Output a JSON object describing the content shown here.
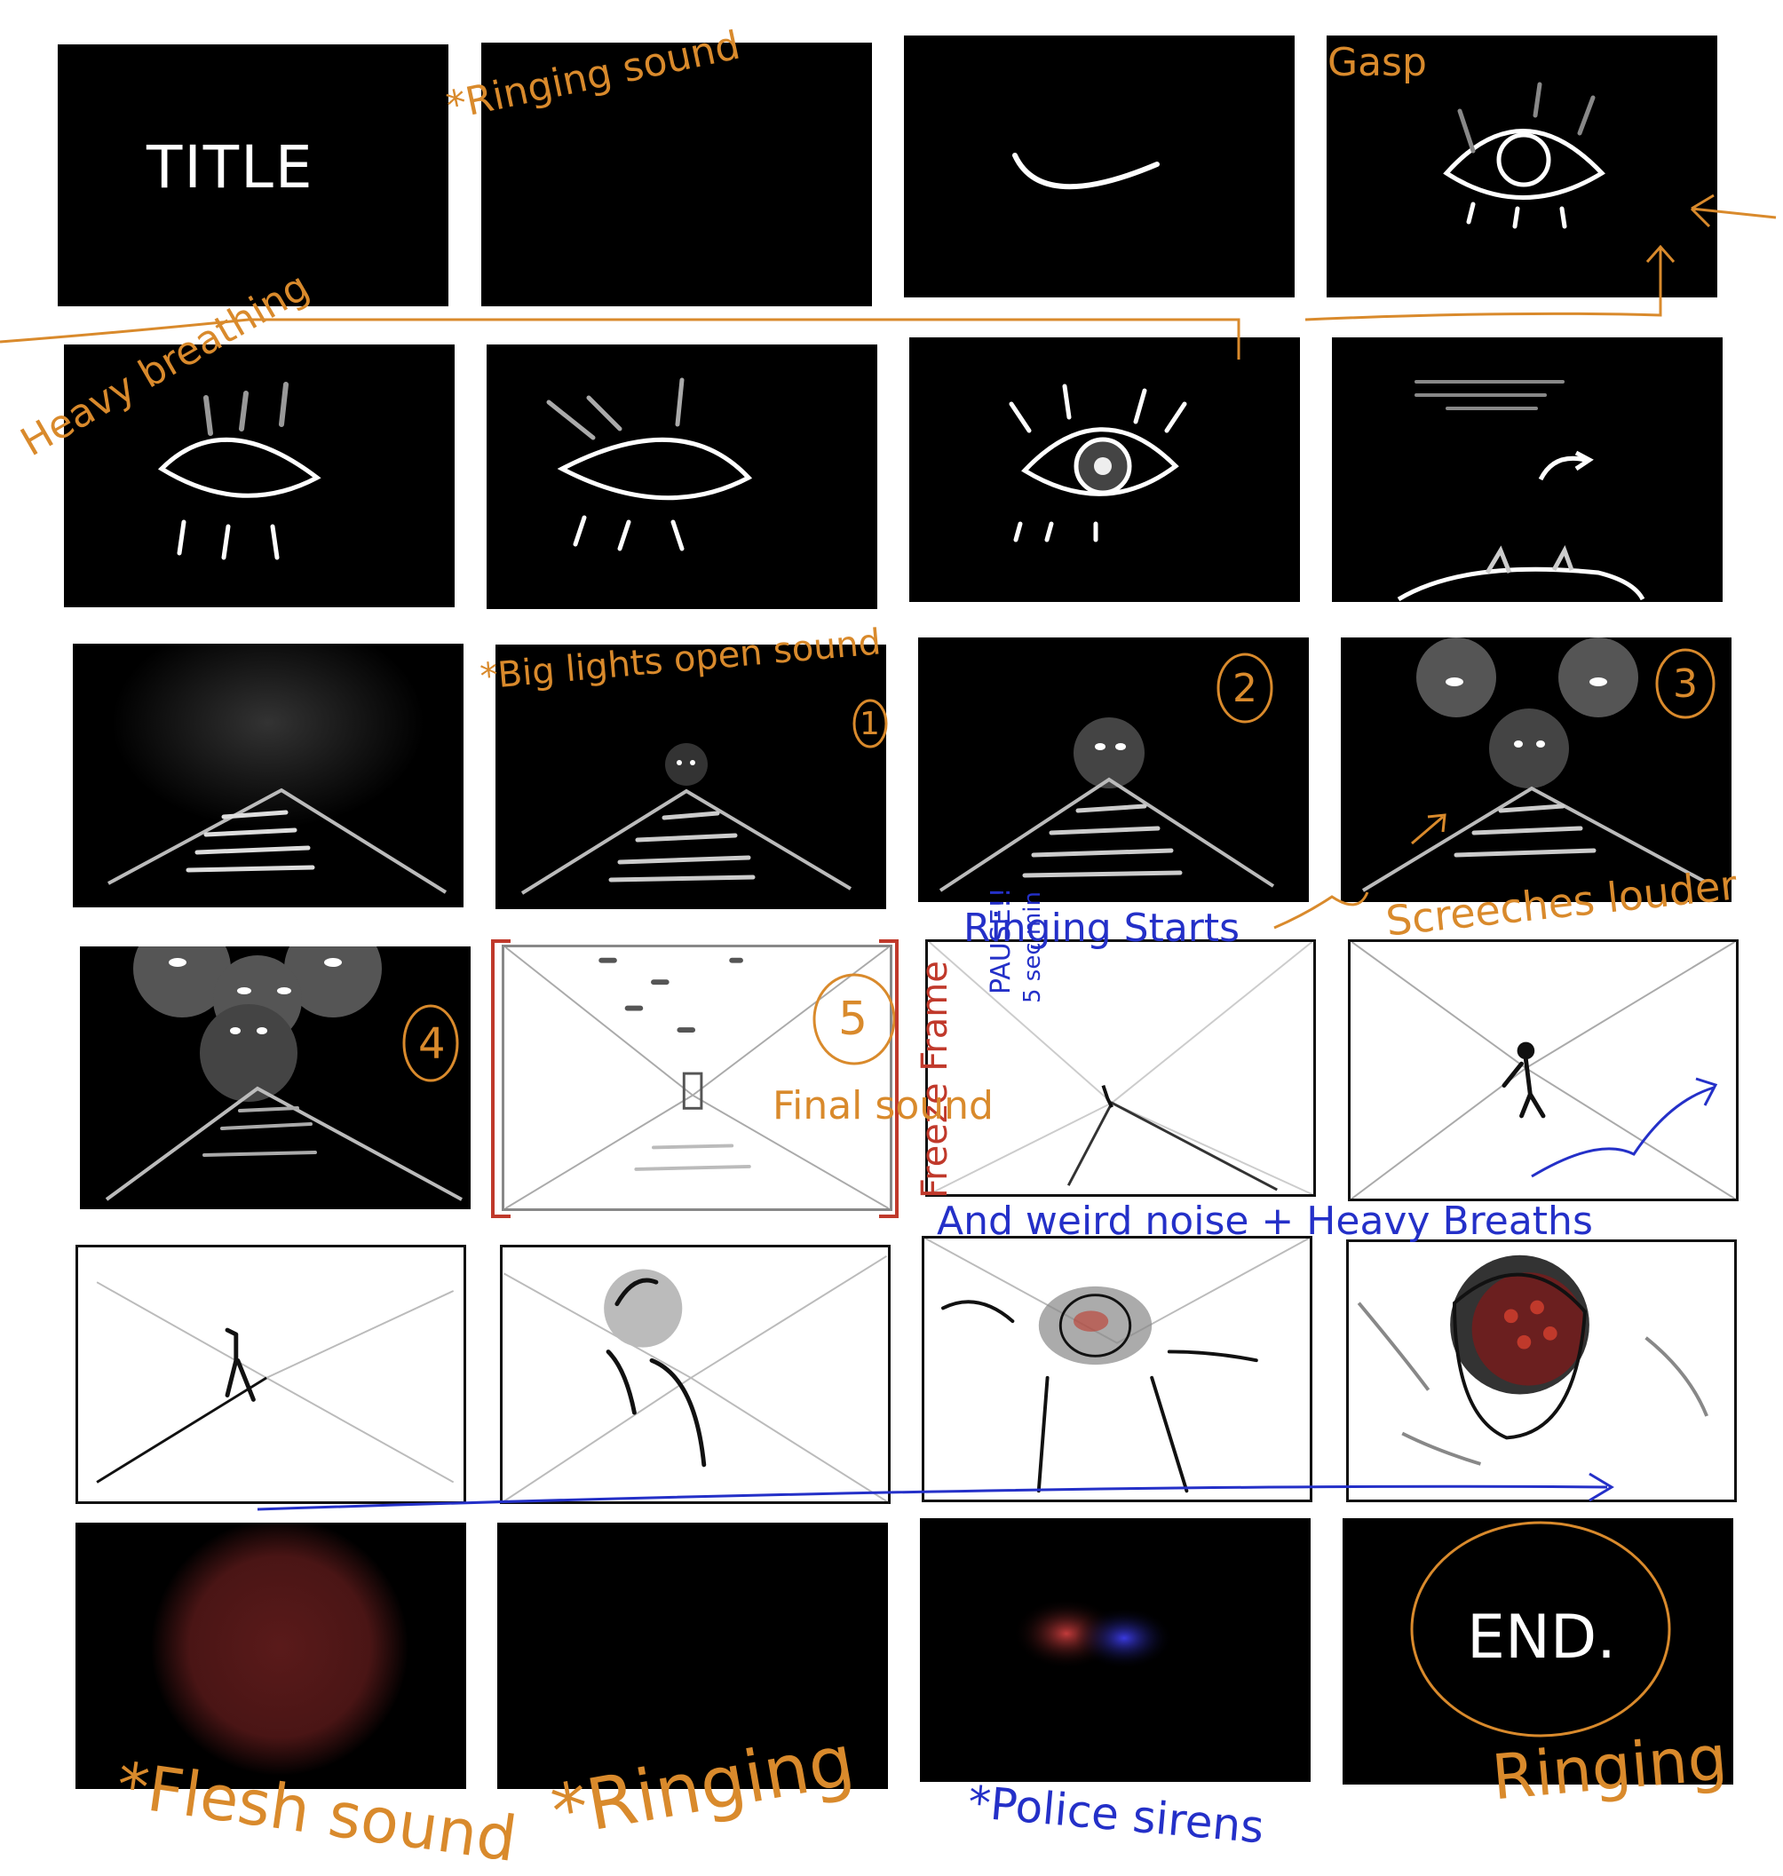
{
  "frames": {
    "title_text": "TITLE",
    "end_text": "END."
  },
  "notes": {
    "ringing_sound": "*Ringing sound",
    "gasp": "Gasp",
    "heavy_breathing": "Heavy breathing",
    "big_lights_open": "*Big lights open sound",
    "n1": "1",
    "n2": "2",
    "n3": "3",
    "n4": "4",
    "n5": "5",
    "ringing_starts": "Ringing Starts",
    "screeches_louder": "Screeches louder",
    "pause": "PAUSE!!",
    "five_sec_min": "5 sec min",
    "freeze_frame": "Freeze Frame",
    "final_sound": "Final sound",
    "weird_noise": "And weird noise + Heavy Breaths",
    "flesh_sound": "*Flesh sound",
    "ringing_row6": "*Ringing",
    "police_sirens": "*Police sirens",
    "ringing_end": "Ringing"
  },
  "colors": {
    "orange": "#d98a2c",
    "blue": "#2430c8",
    "red_bracket": "#c0392b",
    "flesh": "#5a1a1a"
  }
}
